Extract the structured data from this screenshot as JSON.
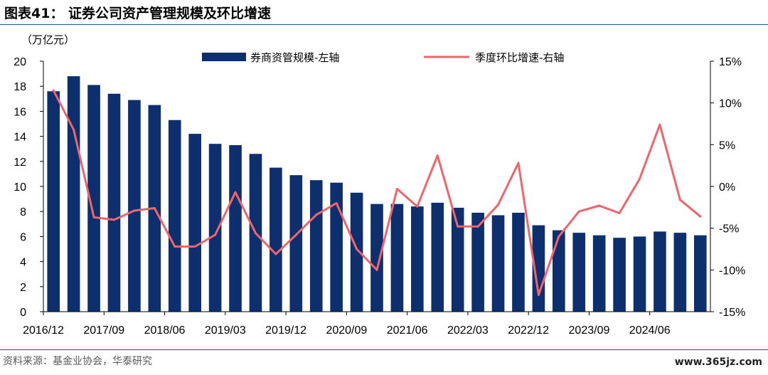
{
  "header": {
    "title": "图表41：  证券公司资产管理规模及环比增速",
    "unit": "（万亿元）"
  },
  "footer": {
    "source": "资料来源：基金业协会，华泰研究",
    "watermark": "www.365jz.com"
  },
  "colors": {
    "bar": "#0d2f6e",
    "line": "#f0646c",
    "rule": "#2b4e8c"
  },
  "chart_data": {
    "type": "bar+line",
    "categories": [
      "2016/12",
      "2017/03",
      "2017/06",
      "2017/09",
      "2017/12",
      "2018/03",
      "2018/06",
      "2018/09",
      "2018/12",
      "2019/03",
      "2019/06",
      "2019/09",
      "2019/12",
      "2020/03",
      "2020/06",
      "2020/09",
      "2020/12",
      "2021/03",
      "2021/06",
      "2021/09",
      "2021/12",
      "2022/03",
      "2022/06",
      "2022/09",
      "2022/12",
      "2023/03",
      "2023/06",
      "2023/09",
      "2023/12",
      "2024/03",
      "2024/06",
      "2024/09",
      "2024/12"
    ],
    "x_tick_labels": [
      "2016/12",
      "2017/09",
      "2018/06",
      "2019/03",
      "2019/12",
      "2020/09",
      "2021/06",
      "2022/03",
      "2022/12",
      "2023/09",
      "2024/06"
    ],
    "series": [
      {
        "name": "券商资管规模-左轴",
        "type": "bar",
        "axis": "left",
        "values": [
          17.6,
          18.8,
          18.1,
          17.4,
          16.9,
          16.5,
          15.3,
          14.2,
          13.4,
          13.3,
          12.6,
          11.5,
          10.9,
          10.5,
          10.3,
          9.5,
          8.6,
          8.6,
          8.4,
          8.7,
          8.3,
          7.9,
          7.7,
          7.9,
          6.9,
          6.5,
          6.3,
          6.1,
          5.9,
          6.0,
          6.4,
          6.3,
          6.1
        ]
      },
      {
        "name": "季度环比增速-右轴",
        "type": "line",
        "axis": "right",
        "values": [
          11.5,
          6.8,
          -3.7,
          -4.0,
          -2.9,
          -2.6,
          -7.2,
          -7.2,
          -5.8,
          -0.7,
          -5.6,
          -8.1,
          -5.8,
          -3.4,
          -2.0,
          -7.5,
          -10.0,
          -0.3,
          -2.4,
          3.7,
          -4.8,
          -4.8,
          -2.2,
          2.8,
          -13.0,
          -6.0,
          -3.0,
          -2.3,
          -3.2,
          0.9,
          7.4,
          -1.6,
          -3.6
        ]
      }
    ],
    "y_left": {
      "ticks": [
        "0",
        "2",
        "4",
        "6",
        "8",
        "10",
        "12",
        "14",
        "16",
        "18",
        "20"
      ],
      "ylim": [
        0,
        20
      ]
    },
    "y_right": {
      "ticks": [
        "-15%",
        "-10%",
        "-5%",
        "0%",
        "5%",
        "10%",
        "15%"
      ],
      "ylim": [
        -15,
        15
      ]
    },
    "grid": false,
    "legend": "top"
  }
}
